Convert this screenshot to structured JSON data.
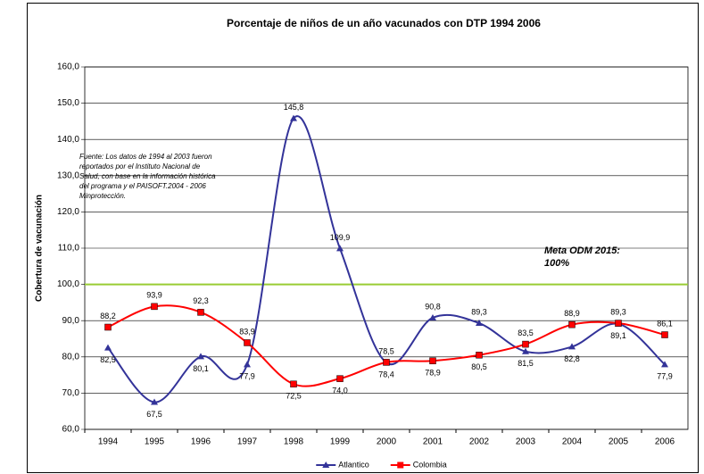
{
  "chart_data": {
    "type": "line",
    "title": "Porcentaje de niños de un año vacunados con DTP 1994 2006",
    "y_label": "Cobertura de vacunación",
    "categories": [
      "1994",
      "1995",
      "1996",
      "1997",
      "1998",
      "1999",
      "2000",
      "2001",
      "2002",
      "2003",
      "2004",
      "2005",
      "2006"
    ],
    "series": [
      {
        "name": "Atlantico",
        "color": "#333399",
        "marker": "triangle",
        "values": [
          82.5,
          67.5,
          80.1,
          77.9,
          145.8,
          109.9,
          78.4,
          90.8,
          89.3,
          81.5,
          82.8,
          89.1,
          77.9
        ],
        "value_labels": [
          "82,5",
          "67,5",
          "80,1",
          "77,9",
          "145,8",
          "109,9",
          "78,4",
          "90,8",
          "89,3",
          "81,5",
          "82,8",
          "89,1",
          "77,9"
        ]
      },
      {
        "name": "Colombia",
        "color": "#ff0000",
        "marker": "square",
        "values": [
          88.2,
          93.9,
          92.3,
          83.9,
          72.5,
          74.0,
          78.5,
          78.9,
          80.5,
          83.5,
          88.9,
          89.3,
          86.1
        ],
        "value_labels": [
          "88,2",
          "93,9",
          "92,3",
          "83,9",
          "72,5",
          "74,0",
          "78,5",
          "78,9",
          "80,5",
          "83,5",
          "88,9",
          "89,3",
          "86,1"
        ]
      }
    ],
    "ylim": [
      60,
      160
    ],
    "yticks": [
      {
        "value": 60,
        "label": "60,0"
      },
      {
        "value": 70,
        "label": "70,0"
      },
      {
        "value": 80,
        "label": "80,0"
      },
      {
        "value": 90,
        "label": "90,0"
      },
      {
        "value": 100,
        "label": "100,0"
      },
      {
        "value": 110,
        "label": "110,0"
      },
      {
        "value": 120,
        "label": "120,0"
      },
      {
        "value": 130,
        "label": "130,0"
      },
      {
        "value": 140,
        "label": "140,0"
      },
      {
        "value": 150,
        "label": "150,0"
      },
      {
        "value": 160,
        "label": "160,0"
      }
    ],
    "grid": true,
    "target": {
      "value": 100,
      "color": "#99cc33",
      "label": [
        "Meta ODM 2015:",
        "100%"
      ]
    },
    "note": [
      "Fuente: Los datos de 1994 al 2003 fueron",
      "reportados por el Instituto Nacional de",
      "Salud, con base en la información histórica",
      "del programa y el PAISOFT.2004 - 2006",
      "Minprotección."
    ],
    "legend": "bottom"
  }
}
